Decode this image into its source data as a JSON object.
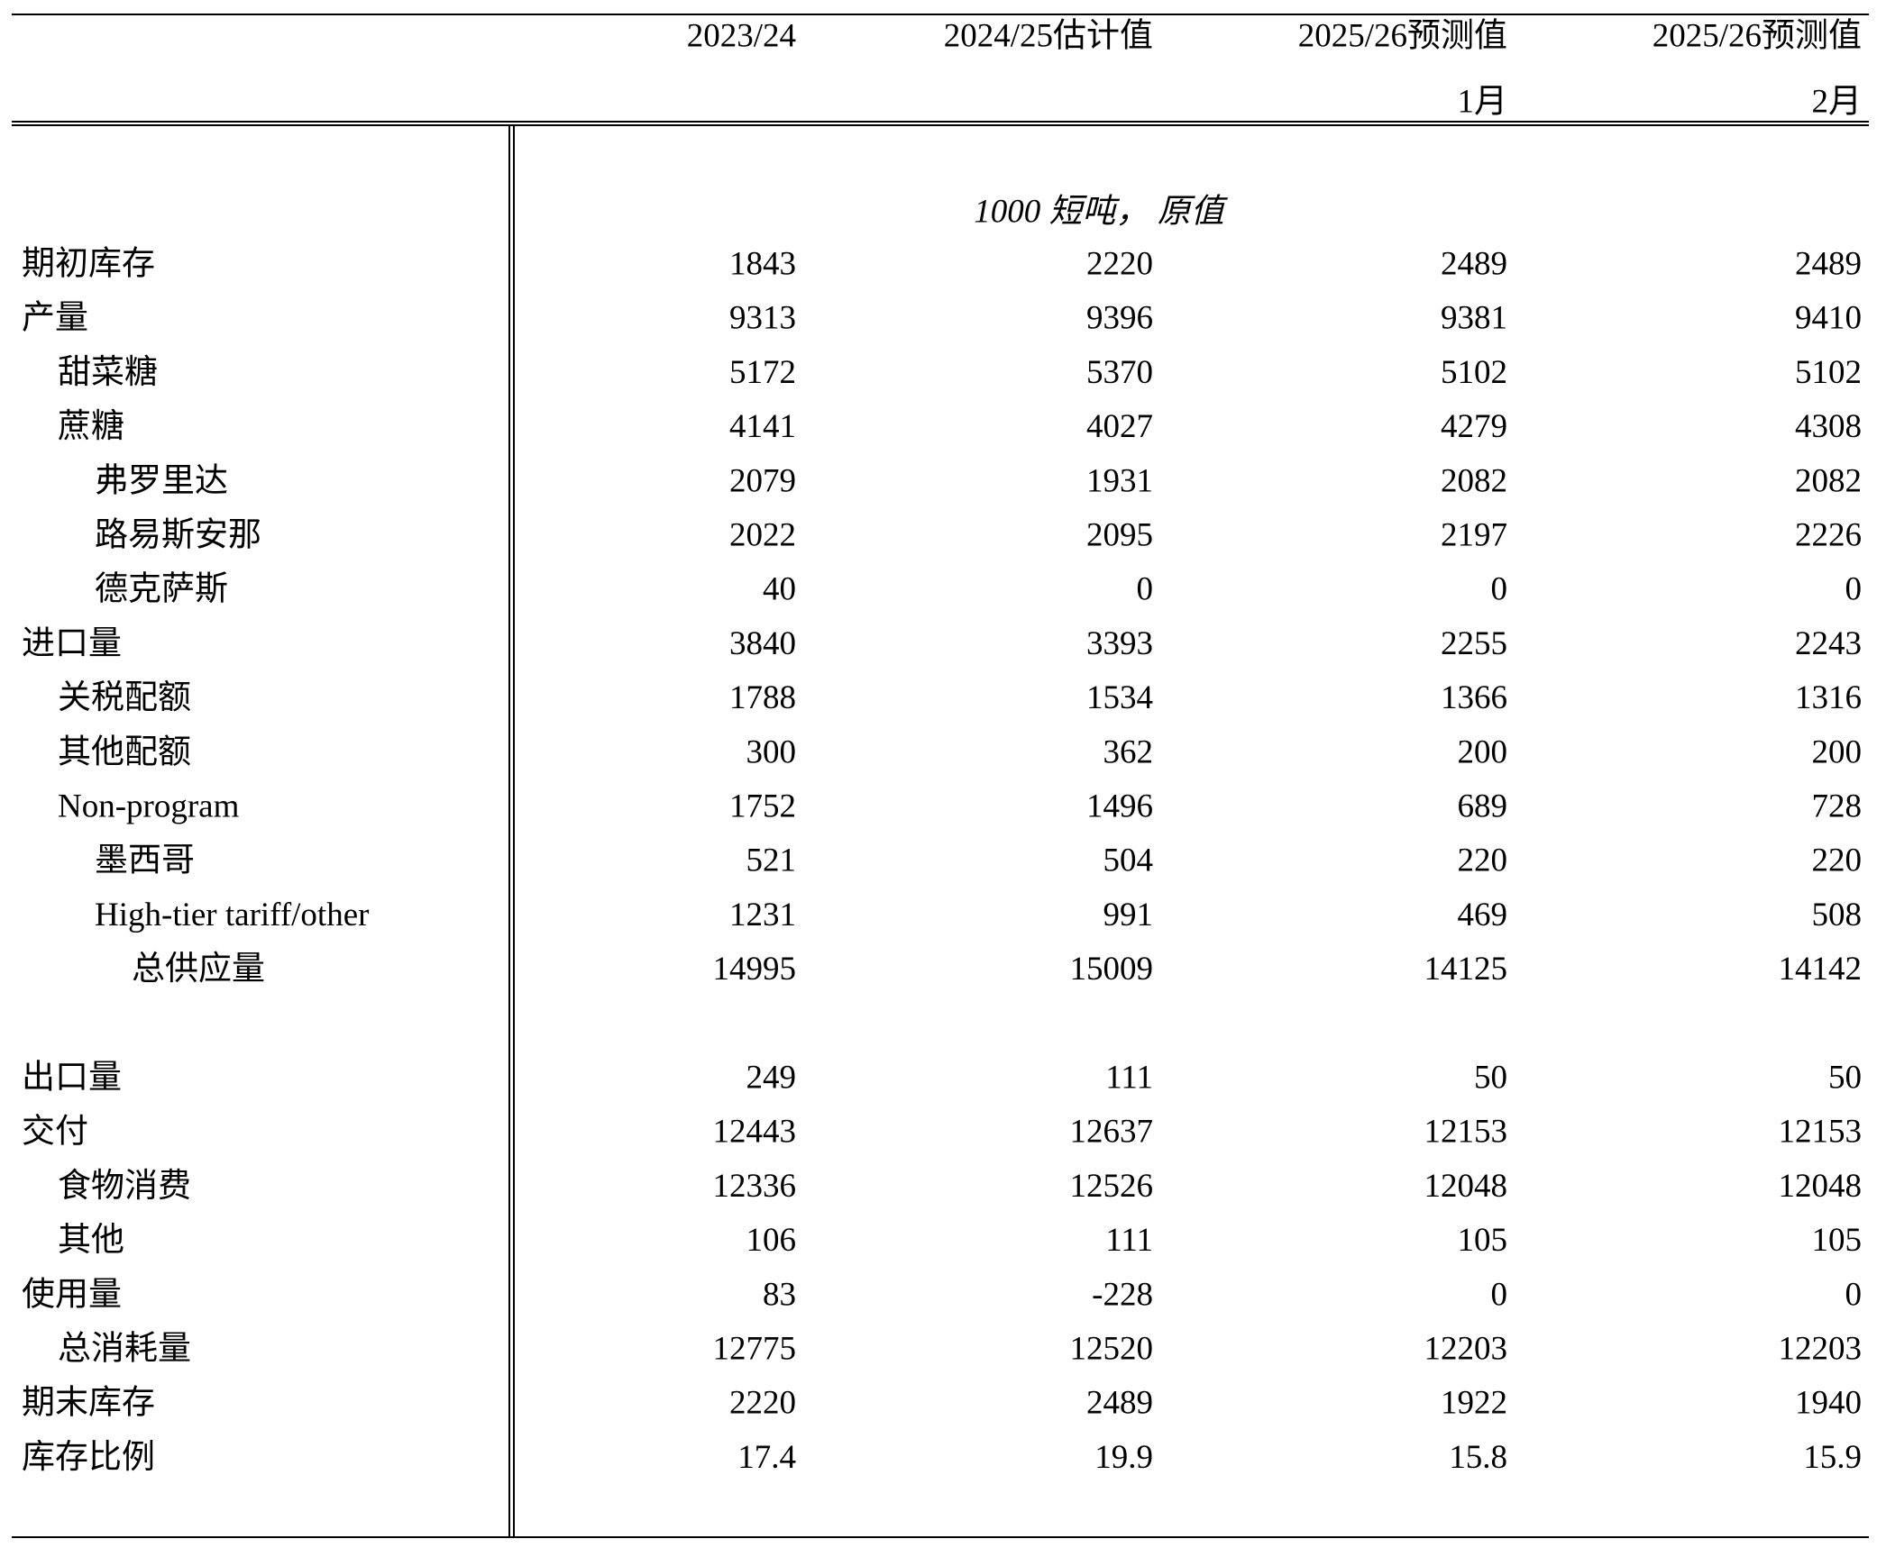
{
  "table": {
    "header": [
      [
        "2023/24"
      ],
      [
        "2024/25估计值"
      ],
      [
        "2025/26预测值",
        "1月"
      ],
      [
        "2025/26预测值",
        "2月"
      ]
    ],
    "unit": "1000 短吨， 原值",
    "rows": [
      [
        "期初库存",
        1843,
        2220,
        2489,
        2489
      ],
      [
        "产量",
        9313,
        9396,
        9381,
        9410
      ],
      [
        "甜菜糖",
        5172,
        5370,
        5102,
        5102
      ],
      [
        "蔗糖",
        4141,
        4027,
        4279,
        4308
      ],
      [
        "弗罗里达",
        2079,
        1931,
        2082,
        2082
      ],
      [
        "路易斯安那",
        2022,
        2095,
        2197,
        2226
      ],
      [
        "德克萨斯",
        40,
        0,
        0,
        0
      ],
      [
        "进口量",
        3840,
        3393,
        2255,
        2243
      ],
      [
        "关税配额",
        1788,
        1534,
        1366,
        1316
      ],
      [
        "其他配额",
        300,
        362,
        200,
        200
      ],
      [
        "Non-program",
        1752,
        1496,
        689,
        728
      ],
      [
        "墨西哥",
        521,
        504,
        220,
        220
      ],
      [
        "High-tier tariff/other",
        1231,
        991,
        469,
        508
      ],
      [
        "总供应量",
        14995,
        15009,
        14125,
        14142
      ],
      [
        "出口量",
        249,
        111,
        50,
        50
      ],
      [
        "交付",
        12443,
        12637,
        12153,
        12153
      ],
      [
        "食物消费",
        12336,
        12526,
        12048,
        12048
      ],
      [
        "其他",
        106,
        111,
        105,
        105
      ],
      [
        "使用量",
        83,
        -228,
        0,
        0
      ],
      [
        "总消耗量",
        12775,
        12520,
        12203,
        12203
      ],
      [
        "期末库存",
        2220,
        2489,
        1922,
        1940
      ],
      [
        "库存比例",
        17.4,
        19.9,
        15.8,
        15.9
      ]
    ]
  }
}
